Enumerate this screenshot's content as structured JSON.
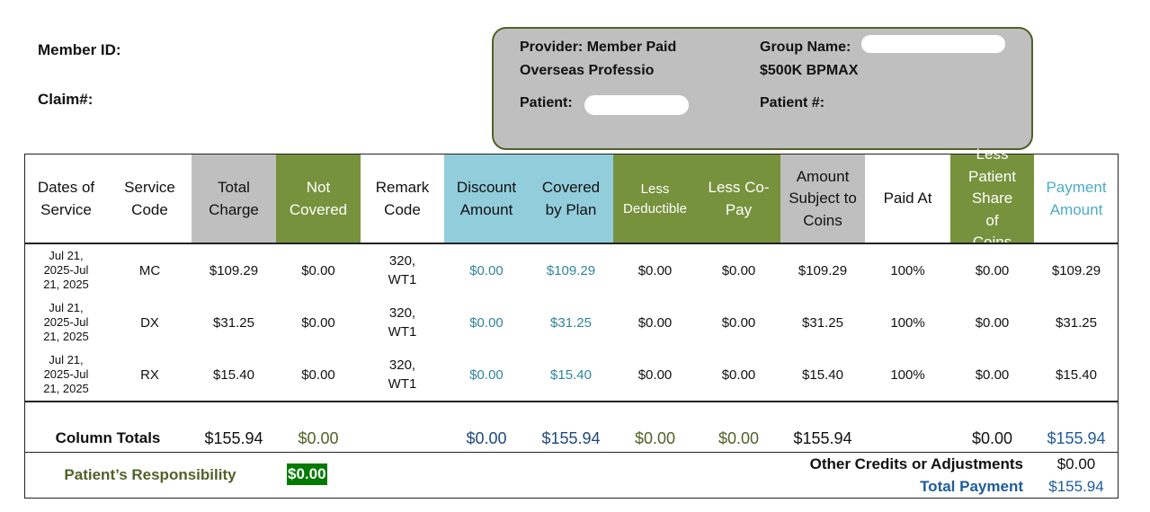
{
  "header": {
    "member_id_label": "Member ID:",
    "claim_label": "Claim#:",
    "provider_lines": [
      "Provider: Member Paid",
      "Overseas Professio"
    ],
    "group_name_label": "Group Name:",
    "group_plan": "$500K BPMAX",
    "patient_label": "Patient:",
    "patient_number_label": "Patient #:"
  },
  "table": {
    "columns": [
      "Dates of Service",
      "Service Code",
      "Total Charge",
      "Not Covered",
      "Remark Code",
      "Discount Amount",
      "Covered by Plan",
      "Less Deductible",
      "Less Co-Pay",
      "Amount Subject to Coins",
      "Paid At",
      "Less Patient Share of Coins",
      "Payment Amount"
    ],
    "rows": [
      [
        "Jul 21, 2025-Jul 21, 2025",
        "MC",
        "$109.29",
        "$0.00",
        "320, WT1",
        "$0.00",
        "$109.29",
        "$0.00",
        "$0.00",
        "$109.29",
        "100%",
        "$0.00",
        "$109.29"
      ],
      [
        "Jul 21, 2025-Jul 21, 2025",
        "DX",
        "$31.25",
        "$0.00",
        "320, WT1",
        "$0.00",
        "$31.25",
        "$0.00",
        "$0.00",
        "$31.25",
        "100%",
        "$0.00",
        "$31.25"
      ],
      [
        "Jul 21, 2025-Jul 21, 2025",
        "RX",
        "$15.40",
        "$0.00",
        "320, WT1",
        "$0.00",
        "$15.40",
        "$0.00",
        "$0.00",
        "$15.40",
        "100%",
        "$0.00",
        "$15.40"
      ]
    ],
    "totals": {
      "label": "Column Totals",
      "values": [
        "$155.94",
        "$0.00",
        null,
        "$0.00",
        "$155.94",
        "$0.00",
        "$0.00",
        "$155.94",
        null,
        "$0.00",
        "$155.94"
      ]
    }
  },
  "footer": {
    "patient_responsibility_label": "Patient’s Responsibility",
    "patient_responsibility": "$0.00",
    "other_credits_label": "Other Credits or Adjustments",
    "other_credits": "$0.00",
    "total_payment_label": "Total Payment",
    "total_payment": "$155.94"
  }
}
